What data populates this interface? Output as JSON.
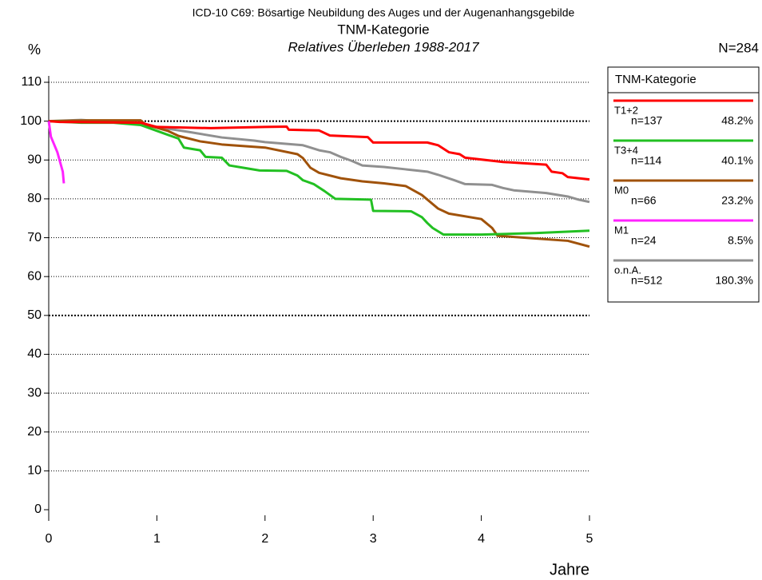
{
  "chart_data": {
    "type": "line",
    "title": "ICD-10 C69: Bösartige Neubildung des Auges und der Augenanhangsgebilde",
    "subtitle": "TNM-Kategorie",
    "subtitle2": "Relatives Überleben 1988-2017",
    "y_label": "%",
    "x_label": "Jahre",
    "total_label": "N=284",
    "legend_title": "TNM-Kategorie",
    "xlim": [
      0,
      5
    ],
    "xticks": [
      0,
      1,
      2,
      3,
      4,
      5
    ],
    "ylim": [
      0,
      110
    ],
    "yticks": [
      0,
      10,
      20,
      30,
      40,
      50,
      60,
      70,
      80,
      90,
      100,
      110
    ],
    "grid": true,
    "bold_grid": [
      50,
      100
    ],
    "series": [
      {
        "name": "T1+2",
        "n_label": "n=137",
        "share": "48.2%",
        "color": "#ff0000",
        "x": [
          0,
          0.1,
          0.5,
          0.85,
          1.0,
          1.5,
          2.0,
          2.2,
          2.22,
          2.5,
          2.6,
          2.95,
          3.0,
          3.5,
          3.6,
          3.7,
          3.8,
          3.85,
          4.2,
          4.6,
          4.65,
          4.75,
          4.8,
          5
        ],
        "values": [
          100,
          99.8,
          99.7,
          99.6,
          98.5,
          98.2,
          98.5,
          98.6,
          97.8,
          97.6,
          96.3,
          95.9,
          94.5,
          94.5,
          93.8,
          92,
          91.5,
          90.6,
          89.5,
          88.8,
          87,
          86.6,
          85.6,
          85
        ]
      },
      {
        "name": "T3+4",
        "n_label": "n=114",
        "share": "40.1%",
        "color": "#22c022",
        "x": [
          0,
          0.3,
          0.6,
          0.85,
          1.0,
          1.1,
          1.2,
          1.25,
          1.4,
          1.45,
          1.6,
          1.67,
          1.8,
          1.95,
          2.2,
          2.3,
          2.35,
          2.45,
          2.55,
          2.65,
          2.98,
          3.0,
          3.35,
          3.45,
          3.5,
          3.55,
          3.65,
          4.0,
          4.5,
          5
        ],
        "values": [
          100,
          99.6,
          99.6,
          99,
          97.5,
          96.5,
          95.5,
          93.2,
          92.5,
          90.8,
          90.6,
          88.6,
          88,
          87.3,
          87.2,
          86,
          84.8,
          83.8,
          82,
          80,
          79.8,
          76.9,
          76.8,
          75.3,
          73.8,
          72.5,
          70.8,
          70.8,
          71.2,
          71.8
        ]
      },
      {
        "name": "M0",
        "n_label": "n=66",
        "share": "23.2%",
        "color": "#a0520a",
        "x": [
          0,
          0.4,
          0.85,
          0.9,
          1.0,
          1.1,
          1.2,
          1.4,
          1.6,
          2.0,
          2.3,
          2.35,
          2.42,
          2.5,
          2.7,
          2.9,
          3.1,
          3.3,
          3.45,
          3.6,
          3.7,
          4.0,
          4.1,
          4.15,
          4.5,
          4.8,
          5
        ],
        "values": [
          100,
          100.2,
          100.2,
          99,
          98.3,
          97.5,
          96.2,
          94.8,
          94,
          93.2,
          91.5,
          90.5,
          88,
          86.7,
          85.3,
          84.5,
          84,
          83.3,
          81,
          77.5,
          76.2,
          74.8,
          72.5,
          70.5,
          69.8,
          69.2,
          67.7
        ]
      },
      {
        "name": "M1",
        "n_label": "n=24",
        "share": "8.5%",
        "color": "#ff22ff",
        "x": [
          0,
          0.02,
          0.08,
          0.13,
          0.14
        ],
        "values": [
          100,
          96,
          92,
          87,
          84
        ]
      },
      {
        "name": "o.n.A.",
        "n_label": "n=512",
        "share": "180.3%",
        "color": "#909090",
        "x": [
          0,
          0.3,
          0.8,
          1.0,
          1.3,
          1.6,
          1.9,
          2.0,
          2.35,
          2.5,
          2.6,
          2.7,
          2.8,
          2.9,
          3.1,
          3.3,
          3.5,
          3.6,
          3.75,
          3.85,
          4.1,
          4.2,
          4.3,
          4.6,
          4.8,
          4.9,
          5
        ],
        "values": [
          100,
          100.3,
          99.5,
          98.5,
          97.2,
          95.8,
          95,
          94.6,
          93.8,
          92.5,
          92,
          90.8,
          89.8,
          88.6,
          88.2,
          87.6,
          87,
          86.2,
          84.8,
          83.8,
          83.6,
          82.8,
          82.2,
          81.5,
          80.6,
          79.8,
          79.2
        ]
      }
    ]
  }
}
